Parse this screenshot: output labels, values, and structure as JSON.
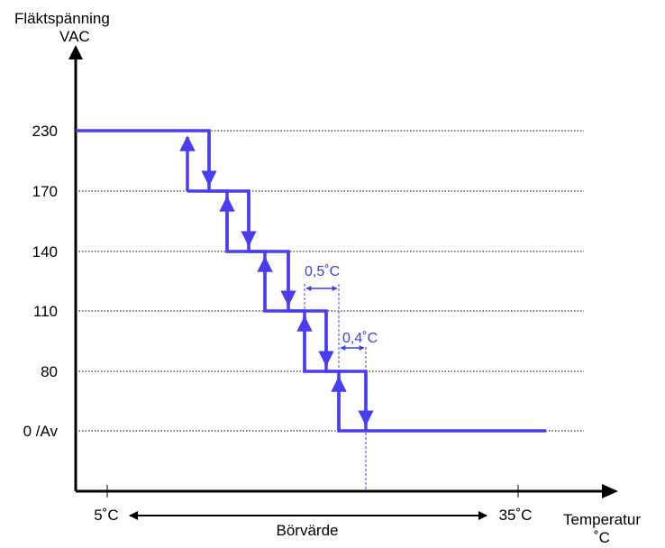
{
  "y_axis": {
    "title_line1": "Fläktspänning",
    "title_line2": "VAC"
  },
  "x_axis": {
    "title_line1": "Temperatur",
    "title_line2": "˚C"
  },
  "y_ticks": [
    "230",
    "170",
    "140",
    "110",
    "80",
    "0 /Av"
  ],
  "x_ticks": {
    "left": "5˚C",
    "right": "35˚C"
  },
  "setpoint_label": "Börvärde",
  "annotations": {
    "hysteresis_upper": "0,5˚C",
    "hysteresis_lower": "0,4˚C"
  },
  "colors": {
    "curve": "#4a3df0",
    "axis": "#000000"
  },
  "chart_data": {
    "type": "line",
    "levels": [
      230,
      170,
      140,
      110,
      80,
      0
    ],
    "xlim_labels": [
      "5˚C",
      "35˚C"
    ]
  }
}
